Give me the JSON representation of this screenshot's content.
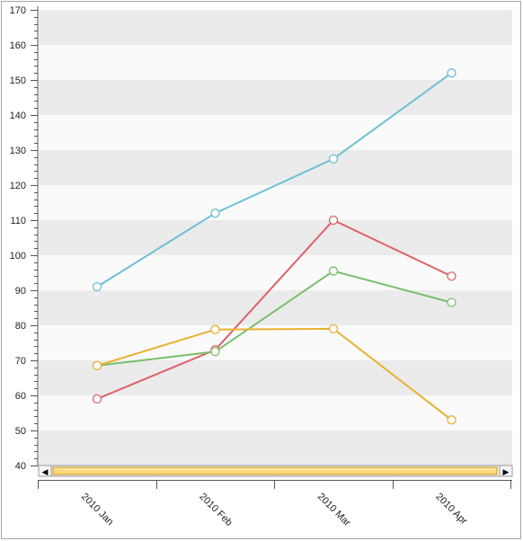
{
  "chart_data": {
    "type": "line",
    "categories": [
      "2010 Jan",
      "2010 Feb",
      "2010 Mar",
      "2010 Apr"
    ],
    "series": [
      {
        "color": "#6cc0d4",
        "values": [
          91,
          112,
          127.5,
          152
        ]
      },
      {
        "color": "#e0606a",
        "values": [
          59,
          73,
          110,
          94
        ]
      },
      {
        "color": "#78c06a",
        "values": [
          68.5,
          72.5,
          95.5,
          86.5
        ]
      },
      {
        "color": "#e9b12f",
        "values": [
          68.5,
          78.8,
          79,
          53
        ]
      }
    ],
    "ylim": [
      40,
      170
    ],
    "yticks": [
      "40",
      "50",
      "60",
      "70",
      "80",
      "90",
      "100",
      "110",
      "120",
      "130",
      "140",
      "150",
      "160",
      "170"
    ],
    "grid": "alternating horizontal bands",
    "legend": "none"
  },
  "scrollbar": {
    "left_arrow": "◀",
    "right_arrow": "▶",
    "thumb_color": "#ffd97a"
  }
}
